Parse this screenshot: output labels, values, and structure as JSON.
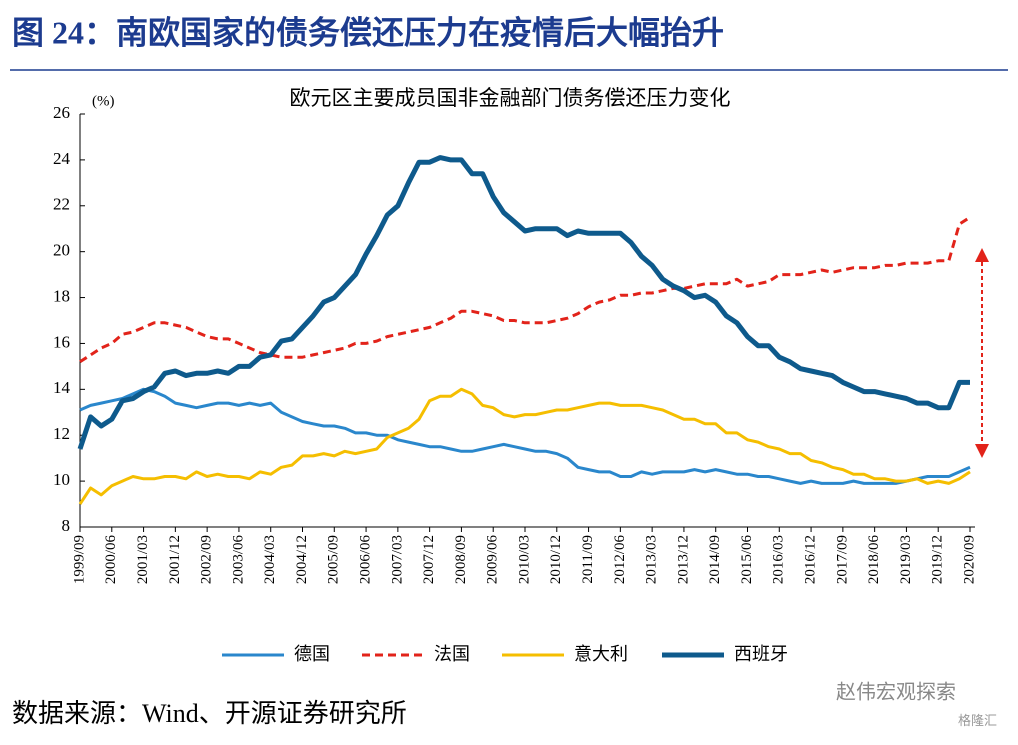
{
  "header": {
    "title": "图 24：南欧国家的债务偿还压力在疫情后大幅抬升"
  },
  "chart_data": {
    "type": "line",
    "title": "欧元区主要成员国非金融部门债务偿还压力变化",
    "y_unit": "(%)",
    "categories": [
      "1999/09",
      null,
      null,
      "2000/06",
      null,
      null,
      "2001/03",
      null,
      null,
      "2001/12",
      null,
      null,
      "2002/09",
      null,
      null,
      "2003/06",
      null,
      null,
      "2004/03",
      null,
      null,
      "2004/12",
      null,
      null,
      "2005/09",
      null,
      null,
      "2006/06",
      null,
      null,
      "2007/03",
      null,
      null,
      "2007/12",
      null,
      null,
      "2008/09",
      null,
      null,
      "2009/06",
      null,
      null,
      "2010/03",
      null,
      null,
      "2010/12",
      null,
      null,
      "2011/09",
      null,
      null,
      "2012/06",
      null,
      null,
      "2013/03",
      null,
      null,
      "2013/12",
      null,
      null,
      "2014/09",
      null,
      null,
      "2015/06",
      null,
      null,
      "2016/03",
      null,
      null,
      "2016/12",
      null,
      null,
      "2017/09",
      null,
      null,
      "2018/06",
      null,
      null,
      "2019/03",
      null,
      null,
      "2019/12",
      null,
      null,
      "2020/09"
    ],
    "series": [
      {
        "name": "德国",
        "color": "#2a87cc",
        "line_style": "solid",
        "values": [
          13.1,
          13.3,
          13.4,
          13.5,
          13.6,
          13.8,
          14.0,
          13.9,
          13.7,
          13.4,
          13.3,
          13.2,
          13.3,
          13.4,
          13.4,
          13.3,
          13.4,
          13.3,
          13.4,
          13.0,
          12.8,
          12.6,
          12.5,
          12.4,
          12.4,
          12.3,
          12.1,
          12.1,
          12.0,
          12.0,
          11.8,
          11.7,
          11.6,
          11.5,
          11.5,
          11.4,
          11.3,
          11.3,
          11.4,
          11.5,
          11.6,
          11.5,
          11.4,
          11.3,
          11.3,
          11.2,
          11.0,
          10.6,
          10.5,
          10.4,
          10.4,
          10.2,
          10.2,
          10.4,
          10.3,
          10.4,
          10.4,
          10.4,
          10.5,
          10.4,
          10.5,
          10.4,
          10.3,
          10.3,
          10.2,
          10.2,
          10.1,
          10.0,
          9.9,
          10.0,
          9.9,
          9.9,
          9.9,
          10.0,
          9.9,
          9.9,
          9.9,
          9.9,
          10.0,
          10.1,
          10.2,
          10.2,
          10.2,
          10.4,
          10.6
        ]
      },
      {
        "name": "法国",
        "color": "#e2231a",
        "line_style": "dashed",
        "values": [
          15.2,
          15.5,
          15.8,
          16.0,
          16.4,
          16.5,
          16.7,
          16.9,
          16.9,
          16.8,
          16.7,
          16.5,
          16.3,
          16.2,
          16.2,
          16.0,
          15.8,
          15.6,
          15.5,
          15.4,
          15.4,
          15.4,
          15.5,
          15.6,
          15.7,
          15.8,
          16.0,
          16.0,
          16.1,
          16.3,
          16.4,
          16.5,
          16.6,
          16.7,
          16.9,
          17.1,
          17.4,
          17.4,
          17.3,
          17.2,
          17.0,
          17.0,
          16.9,
          16.9,
          16.9,
          17.0,
          17.1,
          17.3,
          17.6,
          17.8,
          17.9,
          18.1,
          18.1,
          18.2,
          18.2,
          18.3,
          18.4,
          18.4,
          18.5,
          18.6,
          18.6,
          18.6,
          18.8,
          18.5,
          18.6,
          18.7,
          19.0,
          19.0,
          19.0,
          19.1,
          19.2,
          19.1,
          19.2,
          19.3,
          19.3,
          19.3,
          19.4,
          19.4,
          19.5,
          19.5,
          19.5,
          19.6,
          19.6,
          21.2,
          21.5
        ]
      },
      {
        "name": "意大利",
        "color": "#f5be00",
        "line_style": "solid",
        "values": [
          9.0,
          9.7,
          9.4,
          9.8,
          10.0,
          10.2,
          10.1,
          10.1,
          10.2,
          10.2,
          10.1,
          10.4,
          10.2,
          10.3,
          10.2,
          10.2,
          10.1,
          10.4,
          10.3,
          10.6,
          10.7,
          11.1,
          11.1,
          11.2,
          11.1,
          11.3,
          11.2,
          11.3,
          11.4,
          11.9,
          12.1,
          12.3,
          12.7,
          13.5,
          13.7,
          13.7,
          14.0,
          13.8,
          13.3,
          13.2,
          12.9,
          12.8,
          12.9,
          12.9,
          13.0,
          13.1,
          13.1,
          13.2,
          13.3,
          13.4,
          13.4,
          13.3,
          13.3,
          13.3,
          13.2,
          13.1,
          12.9,
          12.7,
          12.7,
          12.5,
          12.5,
          12.1,
          12.1,
          11.8,
          11.7,
          11.5,
          11.4,
          11.2,
          11.2,
          10.9,
          10.8,
          10.6,
          10.5,
          10.3,
          10.3,
          10.1,
          10.1,
          10.0,
          10.0,
          10.1,
          9.9,
          10.0,
          9.9,
          10.1,
          10.4
        ]
      },
      {
        "name": "西班牙",
        "color": "#0e5a8c",
        "line_style": "solid",
        "values": [
          11.4,
          12.8,
          12.4,
          12.7,
          13.5,
          13.6,
          13.9,
          14.1,
          14.7,
          14.8,
          14.6,
          14.7,
          14.7,
          14.8,
          14.7,
          15.0,
          15.0,
          15.4,
          15.5,
          16.1,
          16.2,
          16.7,
          17.2,
          17.8,
          18.0,
          18.5,
          19.0,
          19.9,
          20.7,
          21.6,
          22.0,
          23.0,
          23.9,
          23.9,
          24.1,
          24.0,
          24.0,
          23.4,
          23.4,
          22.4,
          21.7,
          21.3,
          20.9,
          21.0,
          21.0,
          21.0,
          20.7,
          20.9,
          20.8,
          20.8,
          20.8,
          20.8,
          20.4,
          19.8,
          19.4,
          18.8,
          18.5,
          18.3,
          18.0,
          18.1,
          17.8,
          17.2,
          16.9,
          16.3,
          15.9,
          15.9,
          15.4,
          15.2,
          14.9,
          14.8,
          14.7,
          14.6,
          14.3,
          14.1,
          13.9,
          13.9,
          13.8,
          13.7,
          13.6,
          13.4,
          13.4,
          13.2,
          13.2,
          14.3,
          14.3
        ]
      }
    ],
    "ylim": [
      8,
      26
    ],
    "yticks": [
      8,
      10,
      12,
      14,
      16,
      18,
      20,
      22,
      24,
      26
    ],
    "grid": false,
    "legend": "bottom"
  },
  "footer": {
    "source": "数据来源：Wind、开源证券研究所",
    "watermark": "赵伟宏观探索",
    "watermark2": "格隆汇"
  }
}
